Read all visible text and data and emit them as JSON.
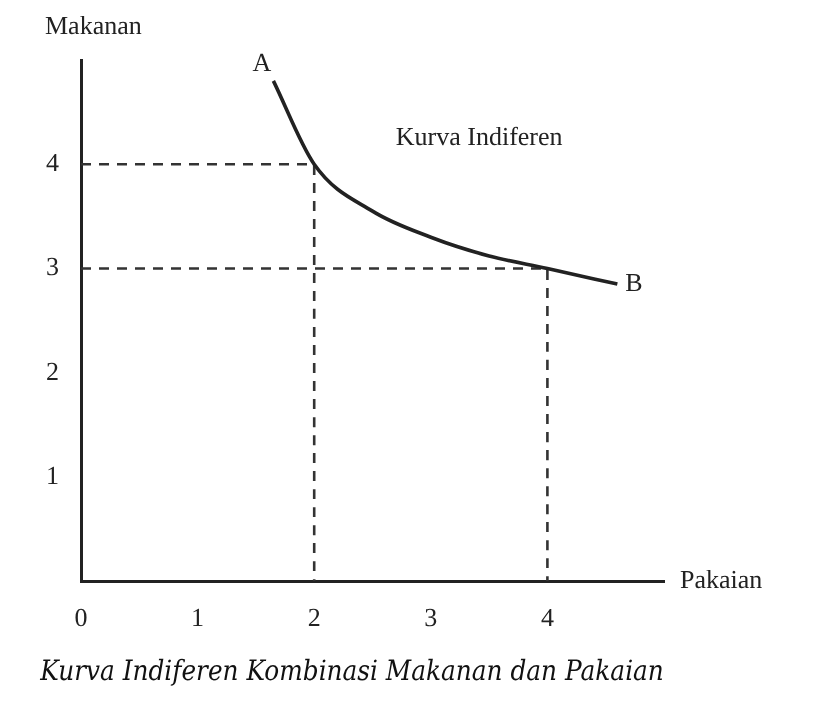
{
  "chart_data": {
    "type": "line",
    "title": "Kurva Indiferen Kombinasi Makanan dan Pakaian",
    "xlabel": "Pakaian",
    "ylabel": "Makanan",
    "xlim": [
      0,
      5
    ],
    "ylim": [
      0,
      5
    ],
    "xticks": [
      0,
      1,
      2,
      3,
      4
    ],
    "yticks": [
      1,
      2,
      3,
      4
    ],
    "marker": "none",
    "grid": false,
    "legend": false,
    "series": [
      {
        "color": "#222222",
        "x": [
          1.65,
          2,
          2.5,
          3,
          3.5,
          4,
          4.6
        ],
        "values": [
          4.8,
          4,
          3.55,
          3.3,
          3.12,
          3,
          2.85
        ]
      },
      {
        "color": "#333333",
        "line_style": "dashed",
        "x": [
          0,
          2,
          2
        ],
        "values": [
          4,
          4,
          0
        ]
      },
      {
        "color": "#333333",
        "line_style": "dashed",
        "x": [
          0,
          4,
          4
        ],
        "values": [
          3,
          3,
          0
        ]
      }
    ],
    "annotations": [
      {
        "text": "A",
        "x": 1.65,
        "y": 4.8
      },
      {
        "text": "B",
        "x": 4.6,
        "y": 2.85
      },
      "Kurva Indiferen"
    ]
  }
}
